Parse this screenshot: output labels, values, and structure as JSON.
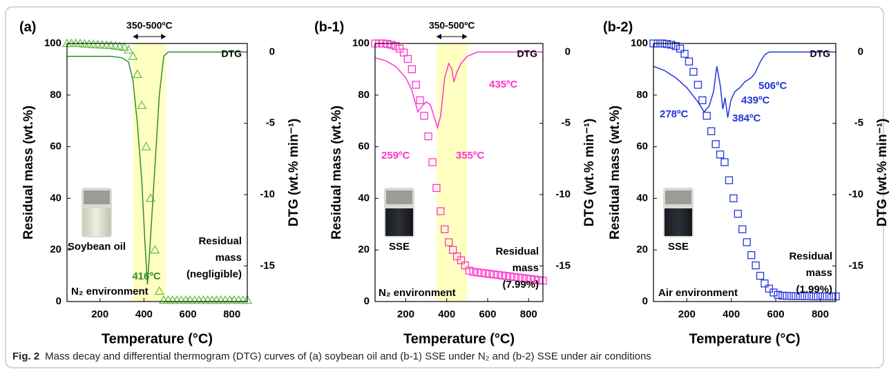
{
  "chart_data": [
    {
      "type": "line",
      "label": "(a)",
      "xlabel": "Temperature (°C)",
      "ylabel": "Residual mass (wt.%)",
      "y2label": "DTG (wt.% min⁻¹)",
      "xlim": [
        50,
        870
      ],
      "xticks": [
        200,
        400,
        600,
        800
      ],
      "ylim": [
        0,
        100
      ],
      "yticks": [
        0,
        20,
        40,
        60,
        80,
        100
      ],
      "y2lim": [
        -17.5,
        0.6
      ],
      "y2ticks": [
        0,
        -5,
        -10,
        -15
      ],
      "highlight": {
        "label": "350-500ºC",
        "range": [
          350,
          500
        ]
      },
      "series": [
        {
          "color": "#6cc04a",
          "marker": "triangle",
          "x": [
            50,
            70,
            90,
            110,
            130,
            150,
            170,
            190,
            210,
            230,
            250,
            270,
            290,
            310,
            330,
            350,
            370,
            390,
            410,
            430,
            450,
            470,
            490,
            510,
            530,
            550,
            570,
            590,
            610,
            630,
            650,
            670,
            690,
            710,
            730,
            750,
            770,
            790,
            810,
            830,
            850,
            870
          ],
          "values": [
            100,
            100,
            100,
            100,
            99.8,
            99.7,
            99.6,
            99.5,
            99.4,
            99.3,
            99.2,
            99,
            98.8,
            98.5,
            97.5,
            95,
            88,
            76,
            60,
            40,
            20,
            4,
            0.5,
            0.5,
            0.5,
            0.5,
            0.5,
            0.5,
            0.5,
            0.5,
            0.5,
            0.5,
            0.5,
            0.5,
            0.5,
            0.5,
            0.5,
            0.5,
            0.5,
            0.5,
            0.5,
            0.5
          ]
        },
        {
          "name": "DTG",
          "color": "#2e8b2e",
          "axis": "y2",
          "x": [
            50,
            100,
            150,
            200,
            250,
            300,
            330,
            350,
            370,
            390,
            405,
            416,
            430,
            450,
            470,
            490,
            510,
            560,
            620,
            700,
            780,
            870
          ],
          "values": [
            -0.3,
            -0.3,
            -0.3,
            -0.3,
            -0.3,
            -0.4,
            -0.7,
            -2,
            -5,
            -9,
            -13.5,
            -16.3,
            -13,
            -8,
            -3,
            -0.3,
            0,
            0,
            0,
            0,
            0,
            0
          ]
        }
      ],
      "annotations": [
        "416ºC"
      ],
      "note": [
        "Residual",
        "mass",
        "(negligible)"
      ],
      "sample": "Soybean oil",
      "environment": "N₂ environment"
    },
    {
      "type": "line",
      "label": "(b-1)",
      "xlabel": "Temperature (°C)",
      "ylabel": "Residual mass (wt.%)",
      "y2label": "DTG (wt.% min⁻¹)",
      "xlim": [
        50,
        870
      ],
      "xticks": [
        200,
        400,
        600,
        800
      ],
      "ylim": [
        0,
        100
      ],
      "yticks": [
        0,
        20,
        40,
        60,
        80,
        100
      ],
      "y2lim": [
        -17.5,
        0.6
      ],
      "y2ticks": [
        0,
        -5,
        -10,
        -15
      ],
      "highlight": {
        "label": "350-500ºC",
        "range": [
          350,
          500
        ]
      },
      "series": [
        {
          "color": "#ff33cc",
          "marker": "square",
          "x": [
            50,
            70,
            90,
            110,
            130,
            150,
            170,
            190,
            210,
            230,
            250,
            270,
            290,
            310,
            330,
            350,
            370,
            390,
            410,
            430,
            450,
            470,
            490,
            510,
            530,
            550,
            570,
            590,
            610,
            630,
            650,
            670,
            690,
            710,
            730,
            750,
            770,
            790,
            810,
            830,
            850,
            870
          ],
          "values": [
            100,
            100,
            100,
            99.8,
            99.5,
            99,
            98,
            96.5,
            94,
            90,
            84,
            78,
            72,
            64,
            54,
            44,
            35,
            28,
            23,
            20,
            17.5,
            16,
            14,
            12,
            11.5,
            11.3,
            11.1,
            10.9,
            10.7,
            10.5,
            10.3,
            10.1,
            9.9,
            9.7,
            9.5,
            9.3,
            9.1,
            8.9,
            8.7,
            8.5,
            8.3,
            8.1
          ]
        },
        {
          "name": "DTG",
          "color": "#ff33cc",
          "axis": "y2",
          "x": [
            50,
            100,
            150,
            200,
            230,
            259,
            280,
            300,
            320,
            340,
            355,
            370,
            390,
            410,
            425,
            435,
            450,
            470,
            500,
            550,
            650,
            750,
            870
          ],
          "values": [
            -0.4,
            -0.6,
            -1,
            -1.8,
            -2.7,
            -4.2,
            -3.8,
            -3.5,
            -3.7,
            -4.6,
            -5.3,
            -4.5,
            -1.8,
            -0.8,
            -1.2,
            -2.1,
            -1.4,
            -0.8,
            -0.3,
            0,
            0,
            0,
            0
          ]
        }
      ],
      "annotations": [
        "259ºC",
        "355ºC",
        "435ºC"
      ],
      "note": [
        "Residual",
        "mass",
        "(7.99%)"
      ],
      "sample": "SSE",
      "environment": "N₂ environment"
    },
    {
      "type": "line",
      "label": "(b-2)",
      "xlabel": "Temperature (°C)",
      "ylabel": "Residual mass (wt.%)",
      "y2label": "DTG (wt.% min⁻¹)",
      "xlim": [
        50,
        870
      ],
      "xticks": [
        200,
        400,
        600,
        800
      ],
      "ylim": [
        0,
        100
      ],
      "yticks": [
        0,
        20,
        40,
        60,
        80,
        100
      ],
      "y2lim": [
        -17.5,
        0.6
      ],
      "y2ticks": [
        0,
        -5,
        -10,
        -15
      ],
      "series": [
        {
          "color": "#2233dd",
          "marker": "square",
          "x": [
            50,
            70,
            90,
            110,
            130,
            150,
            170,
            190,
            210,
            230,
            250,
            270,
            290,
            310,
            330,
            350,
            370,
            390,
            410,
            430,
            450,
            470,
            490,
            510,
            530,
            550,
            570,
            590,
            610,
            630,
            650,
            670,
            690,
            710,
            730,
            750,
            770,
            790,
            810,
            830,
            850,
            870
          ],
          "values": [
            100,
            100,
            100,
            99.8,
            99.5,
            99,
            98,
            96,
            93,
            89,
            84,
            78,
            72,
            66,
            61,
            57,
            54,
            47,
            40,
            34,
            28,
            23,
            18,
            14,
            10,
            7,
            5,
            3.5,
            2.6,
            2.3,
            2.2,
            2.15,
            2.1,
            2.1,
            2.05,
            2.05,
            2,
            2,
            2,
            2,
            2,
            2
          ]
        },
        {
          "name": "DTG",
          "color": "#2233dd",
          "axis": "y2",
          "x": [
            50,
            100,
            150,
            200,
            250,
            278,
            300,
            320,
            335,
            350,
            362,
            372,
            384,
            398,
            415,
            430,
            439,
            460,
            490,
            506,
            530,
            550,
            570,
            650,
            870
          ],
          "values": [
            -1,
            -1.3,
            -1.8,
            -2.5,
            -3.5,
            -4.2,
            -3.8,
            -2.8,
            -1,
            -2.3,
            -4,
            -3.2,
            -4.6,
            -3.4,
            -2.8,
            -2.6,
            -2.5,
            -2.1,
            -1.8,
            -1.5,
            -0.7,
            -0.2,
            0,
            0,
            0
          ]
        }
      ],
      "annotations": [
        "278ºC",
        "384ºC",
        "439ºC",
        "506ºC"
      ],
      "note": [
        "Residual",
        "mass",
        "(1.99%)"
      ],
      "sample": "SSE",
      "environment": "Air environment"
    }
  ],
  "caption": {
    "label": "Fig. 2",
    "text": "Mass decay and differential thermogram (DTG) curves of (a) soybean oil and (b-1) SSE under N₂ and (b-2) SSE under air conditions"
  }
}
